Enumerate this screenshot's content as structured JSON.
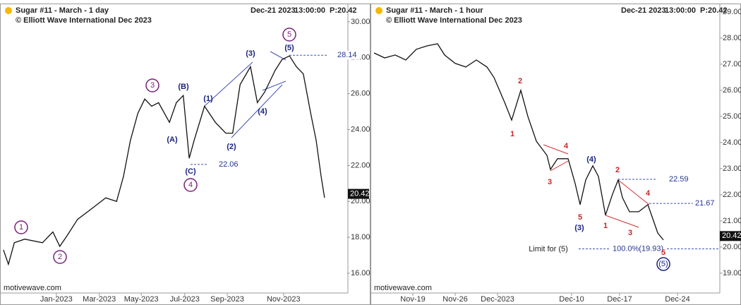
{
  "chart_data": [
    {
      "type": "line",
      "title": "Sugar #11 - March - 1 day",
      "subtitle": "© Elliott Wave International Dec 2023",
      "date": "Dec-21 2023",
      "time": "13:00:00",
      "price_label": "P:20.42",
      "watermark": "motivewave.com",
      "color": "#111111",
      "circle_color": "#7a1f7a",
      "label_color": "#1a237e",
      "minor_color": "#c62828",
      "x": [
        0.7,
        1.7,
        2.9,
        5,
        8.6,
        10.7,
        12.1,
        13.6,
        15.7,
        18.6,
        21.4,
        23.6,
        25,
        26.4,
        27.9,
        29.3,
        30.7,
        32.1,
        34.3,
        35.7,
        37.1,
        38.3,
        39.3,
        41.4,
        43.6,
        45.7,
        47.1,
        48.6,
        50.7,
        52.1,
        53.6,
        55.7,
        57.1,
        58.6,
        60,
        61.4,
        62.9,
        64,
        65,
        65.7
      ],
      "values": [
        17.3,
        16.5,
        17.7,
        17.9,
        17.7,
        18.3,
        17.5,
        18.1,
        19.0,
        19.6,
        20.2,
        20.0,
        21.4,
        23.4,
        24.9,
        25.7,
        25.3,
        25.5,
        24.4,
        25.5,
        25.9,
        22.4,
        23.4,
        25.3,
        24.4,
        23.8,
        23.8,
        26.5,
        27.5,
        25.5,
        26.1,
        27.3,
        27.9,
        28.1,
        27.5,
        27.1,
        24.9,
        23.4,
        21.4,
        20.2
      ],
      "xlim": [
        0,
        70
      ],
      "xticks": [
        {
          "value": 11.4,
          "label": "Jan-2023"
        },
        {
          "value": 20.1,
          "label": "Mar-2023"
        },
        {
          "value": 28.6,
          "label": "May-2023"
        },
        {
          "value": 37.4,
          "label": "Jul-2023"
        },
        {
          "value": 46,
          "label": "Sep-2023"
        },
        {
          "value": 57.4,
          "label": "Nov-2023"
        }
      ],
      "ylim": [
        14.9,
        30.9
      ],
      "yticks": [
        {
          "value": 16,
          "label": "16.00"
        },
        {
          "value": 18,
          "label": "18.00"
        },
        {
          "value": 20,
          "label": "20.00"
        },
        {
          "value": 22,
          "label": "22.00"
        },
        {
          "value": 24,
          "label": "24.00"
        },
        {
          "value": 26,
          "label": "26.00"
        },
        {
          "value": 28,
          "label": "28.00"
        },
        {
          "value": 30,
          "label": "30.00"
        }
      ],
      "last_price": 20.42,
      "levels": [
        28.14,
        22.06
      ],
      "circled_labels": [
        "1",
        "2",
        "3",
        "4",
        "5"
      ],
      "labels": [
        "(A)",
        "(B)",
        "(C)",
        "(1)",
        "(2)",
        "(3)",
        "(4)",
        "(5)"
      ],
      "minor_labels": []
    },
    {
      "type": "line",
      "title": "Sugar #11 - March - 1 hour",
      "subtitle": "© Elliott Wave International Dec 2023",
      "date": "Dec-21 2023",
      "time": "13:00:00",
      "price_label": "P:20.42",
      "watermark": "motivewave.com",
      "color": "#111111",
      "circle_color": "#1a237e",
      "label_color": "#1a237e",
      "minor_color": "#c62828",
      "x": [
        0.2,
        1.7,
        3.2,
        4.7,
        6.2,
        7.7,
        9.2,
        10.2,
        11.7,
        13.2,
        14.7,
        16.2,
        17.2,
        18.7,
        19.7,
        21,
        22,
        23.2,
        24.7,
        25.2,
        26.2,
        27.7,
        28.7,
        29.4,
        30.2,
        31.2,
        32,
        33,
        34,
        34.8,
        35.4,
        36.4,
        37.7,
        39,
        39.7,
        40.4,
        41.2
      ],
      "values": [
        27.43,
        27.24,
        27.35,
        27.16,
        27.57,
        27.7,
        27.78,
        27.35,
        27.03,
        26.89,
        27.16,
        26.89,
        26.49,
        25.54,
        24.86,
        26.0,
        25.0,
        24.05,
        23.51,
        22.97,
        23.38,
        23.38,
        22.43,
        21.62,
        22.57,
        23.11,
        22.7,
        21.22,
        22.03,
        22.57,
        21.89,
        21.35,
        21.35,
        21.62,
        21.08,
        20.54,
        20.27
      ],
      "xlim": [
        0,
        49
      ],
      "xticks": [
        {
          "value": 5.7,
          "label": "Nov-19"
        },
        {
          "value": 11.7,
          "label": "Nov-26"
        },
        {
          "value": 17.7,
          "label": "Dec-2023"
        },
        {
          "value": 28.2,
          "label": "Dec-10"
        },
        {
          "value": 35,
          "label": "Dec-17"
        },
        {
          "value": 43.2,
          "label": "Dec-24"
        }
      ],
      "ylim": [
        18.24,
        29.24
      ],
      "yticks": [
        {
          "value": 19,
          "label": "19.00"
        },
        {
          "value": 20,
          "label": "20.00"
        },
        {
          "value": 21,
          "label": "21.00"
        },
        {
          "value": 22,
          "label": "22.00"
        },
        {
          "value": 23,
          "label": "23.00"
        },
        {
          "value": 24,
          "label": "24.00"
        },
        {
          "value": 25,
          "label": "25.00"
        },
        {
          "value": 26,
          "label": "26.00"
        },
        {
          "value": 27,
          "label": "27.00"
        },
        {
          "value": 28,
          "label": "28.00"
        },
        {
          "value": 29,
          "label": "29.00"
        }
      ],
      "last_price": 20.42,
      "levels": [
        22.59,
        21.67,
        {
          "value": 19.93,
          "label": "100.0%(19.93)"
        }
      ],
      "note": "Limit for (5)",
      "circled_labels": [
        "(5)"
      ],
      "labels": [
        "(3)",
        "(4)"
      ],
      "minor_labels": [
        "2",
        "1",
        "4",
        "3",
        "5",
        "2",
        "4",
        "3",
        "1",
        "5"
      ]
    }
  ]
}
